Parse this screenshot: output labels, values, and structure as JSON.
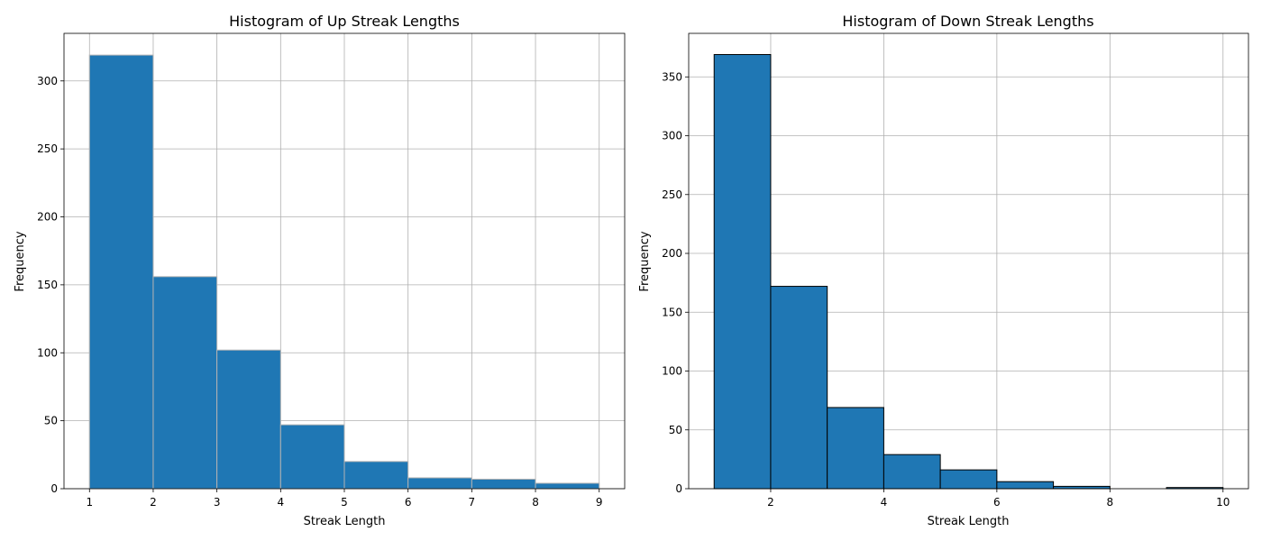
{
  "chart_data": [
    {
      "type": "bar",
      "title": "Histogram of Up Streak Lengths",
      "xlabel": "Streak Length",
      "ylabel": "Frequency",
      "bins": [
        {
          "start": 1,
          "end": 2,
          "value": 319
        },
        {
          "start": 2,
          "end": 3,
          "value": 156
        },
        {
          "start": 3,
          "end": 4,
          "value": 102
        },
        {
          "start": 4,
          "end": 5,
          "value": 47
        },
        {
          "start": 5,
          "end": 6,
          "value": 20
        },
        {
          "start": 6,
          "end": 7,
          "value": 8
        },
        {
          "start": 7,
          "end": 8,
          "value": 7
        },
        {
          "start": 8,
          "end": 9,
          "value": 4
        }
      ],
      "xlim": [
        0.6,
        9.4
      ],
      "ylim": [
        0,
        335
      ],
      "xticks": [
        1,
        2,
        3,
        4,
        5,
        6,
        7,
        8,
        9
      ],
      "yticks": [
        0,
        50,
        100,
        150,
        200,
        250,
        300
      ],
      "grid": true,
      "bar_color": "#1f77b4",
      "edge_color": "#b3b3b3"
    },
    {
      "type": "bar",
      "title": "Histogram of Down Streak Lengths",
      "xlabel": "Streak Length",
      "ylabel": "Frequency",
      "bins": [
        {
          "start": 1,
          "end": 2,
          "value": 369
        },
        {
          "start": 2,
          "end": 3,
          "value": 172
        },
        {
          "start": 3,
          "end": 4,
          "value": 69
        },
        {
          "start": 4,
          "end": 5,
          "value": 29
        },
        {
          "start": 5,
          "end": 6,
          "value": 16
        },
        {
          "start": 6,
          "end": 7,
          "value": 6
        },
        {
          "start": 7,
          "end": 8,
          "value": 2
        },
        {
          "start": 8,
          "end": 9,
          "value": 0
        },
        {
          "start": 9,
          "end": 10,
          "value": 1
        }
      ],
      "xlim": [
        0.55,
        10.45
      ],
      "ylim": [
        0,
        387
      ],
      "xticks": [
        2,
        4,
        6,
        8,
        10
      ],
      "yticks": [
        0,
        50,
        100,
        150,
        200,
        250,
        300,
        350
      ],
      "grid": true,
      "bar_color": "#1f77b4",
      "edge_color": "#000000"
    }
  ]
}
